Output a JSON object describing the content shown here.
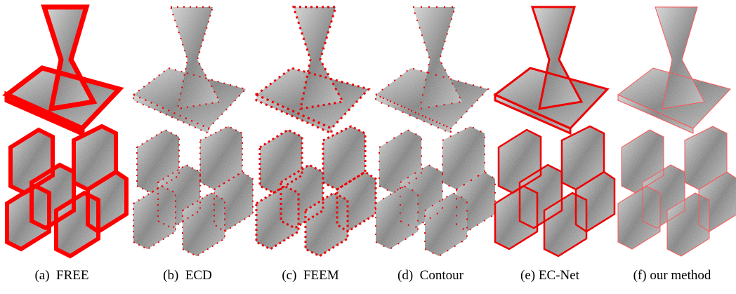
{
  "figure": {
    "panels": [
      {
        "caption": "(a)  FREE"
      },
      {
        "caption": "(b)  ECD"
      },
      {
        "caption": "(c)  FEEM"
      },
      {
        "caption": "(d)  Contour"
      },
      {
        "caption": "(e) EC-Net"
      },
      {
        "caption": "(f) our method"
      }
    ]
  }
}
